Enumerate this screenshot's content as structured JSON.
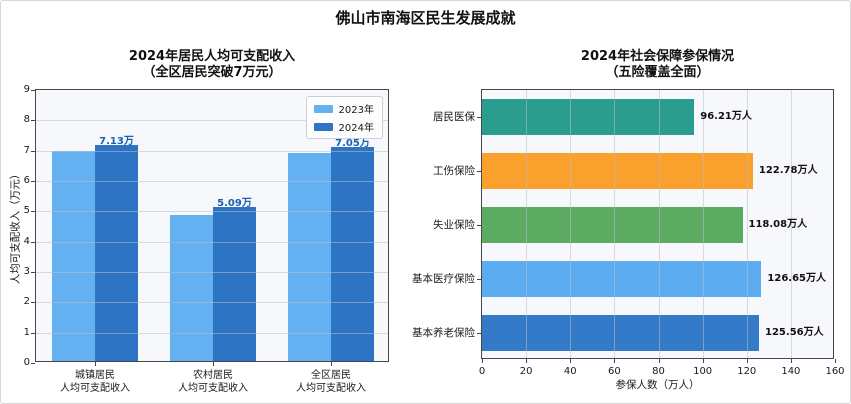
{
  "figure": {
    "title": "佛山市南海区民生发展成就"
  },
  "chart_data": [
    {
      "type": "bar",
      "title": [
        "2024年居民人均可支配收入",
        "（全区居民突破7万元）"
      ],
      "ylabel": "人均可支配收入（万元）",
      "categories": [
        [
          "城镇居民",
          "人均可支配收入"
        ],
        [
          "农村居民",
          "人均可支配收入"
        ],
        [
          "全区居民",
          "人均可支配收入"
        ]
      ],
      "series": [
        {
          "name": "2023年",
          "color": "#63b1f0",
          "values": [
            6.94,
            4.81,
            6.87
          ]
        },
        {
          "name": "2024年",
          "color": "#2d74c4",
          "values": [
            7.13,
            5.09,
            7.05
          ],
          "value_labels": [
            "7.13万",
            "5.09万",
            "7.05万"
          ]
        }
      ],
      "ylim": [
        0,
        9
      ],
      "yticks": [
        0,
        1,
        2,
        3,
        4,
        5,
        6,
        7,
        8,
        9
      ],
      "grid": true,
      "legend_position": "upper right",
      "value_label_color": "#1c5fb0"
    },
    {
      "type": "bar-horizontal",
      "title": [
        "2024年社会保障参保情况",
        "（五险覆盖全面）"
      ],
      "xlabel": "参保人数（万人）",
      "categories": [
        "居民医保",
        "工伤保险",
        "失业保险",
        "基本医疗保险",
        "基本养老保险"
      ],
      "values": [
        96.21,
        122.78,
        118.08,
        126.65,
        125.56
      ],
      "value_labels": [
        "96.21万人",
        "122.78万人",
        "118.08万人",
        "126.65万人",
        "125.56万人"
      ],
      "colors": [
        "#2a9d8f",
        "#f9a12c",
        "#5cab60",
        "#5bacf0",
        "#337ac8"
      ],
      "xlim": [
        0,
        160
      ],
      "xticks": [
        0,
        20,
        40,
        60,
        80,
        100,
        120,
        140,
        160
      ],
      "grid": true
    }
  ]
}
